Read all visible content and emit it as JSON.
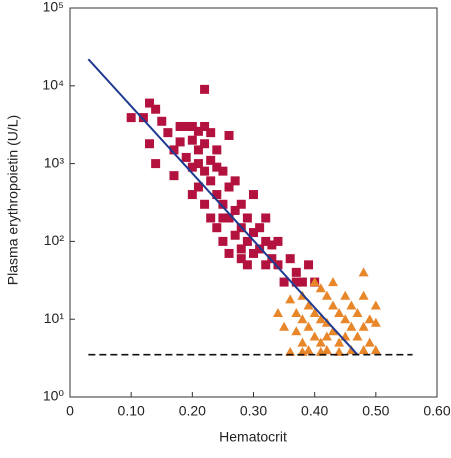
{
  "chart_data": {
    "type": "scatter",
    "x_label": "Hematocrit",
    "y_label": "Plasma erythropoietin (U/L)",
    "xlim": [
      0,
      0.6
    ],
    "ylim": [
      1,
      100000
    ],
    "ylog": true,
    "xticks": [
      0,
      {
        "value": 0.1,
        "label": "0.10"
      },
      {
        "value": 0.2,
        "label": "0.20"
      },
      {
        "value": 0.3,
        "label": "0.30"
      },
      {
        "value": 0.4,
        "label": "0.40"
      },
      {
        "value": 0.5,
        "label": "0.50"
      },
      {
        "value": 0.6,
        "label": "0.60"
      }
    ],
    "yticks": [
      {
        "value": 1,
        "label": "10⁰"
      },
      {
        "value": 10,
        "label": "10¹"
      },
      {
        "value": 100,
        "label": "10²"
      },
      {
        "value": 1000,
        "label": "10³"
      },
      {
        "value": 10000,
        "label": "10⁴"
      },
      {
        "value": 100000,
        "label": "10⁵"
      }
    ],
    "series": [
      {
        "color": "#b3123f",
        "marker": "square",
        "x": [
          0.1,
          0.12,
          0.13,
          0.14,
          0.13,
          0.14,
          0.15,
          0.16,
          0.17,
          0.17,
          0.18,
          0.18,
          0.19,
          0.19,
          0.2,
          0.2,
          0.2,
          0.21,
          0.21,
          0.21,
          0.22,
          0.22,
          0.22,
          0.22,
          0.22,
          0.23,
          0.23,
          0.23,
          0.23,
          0.24,
          0.24,
          0.24,
          0.25,
          0.25,
          0.25,
          0.26,
          0.26,
          0.26,
          0.26,
          0.27,
          0.27,
          0.27,
          0.28,
          0.28,
          0.28,
          0.29,
          0.29,
          0.3,
          0.3,
          0.3,
          0.31,
          0.31,
          0.32,
          0.32,
          0.32,
          0.33,
          0.33,
          0.34,
          0.34,
          0.35,
          0.36,
          0.37,
          0.37,
          0.38,
          0.39,
          0.4,
          0.2,
          0.21,
          0.24,
          0.25,
          0.28,
          0.29
        ],
        "values": [
          3900,
          3900,
          6000,
          5000,
          1800,
          1000,
          3500,
          2500,
          1500,
          700,
          3000,
          1900,
          3000,
          1200,
          3000,
          2000,
          900,
          2600,
          1500,
          500,
          9000,
          3000,
          1800,
          800,
          300,
          2500,
          1100,
          600,
          200,
          1500,
          400,
          150,
          800,
          300,
          100,
          2300,
          500,
          200,
          70,
          600,
          250,
          120,
          300,
          150,
          60,
          200,
          100,
          400,
          130,
          70,
          150,
          80,
          200,
          100,
          50,
          90,
          60,
          100,
          50,
          30,
          60,
          40,
          30,
          30,
          50,
          30,
          400,
          1000,
          900,
          200,
          80,
          50
        ]
      },
      {
        "color": "#e8862a",
        "marker": "triangle",
        "x": [
          0.36,
          0.37,
          0.37,
          0.38,
          0.38,
          0.38,
          0.39,
          0.39,
          0.39,
          0.4,
          0.4,
          0.4,
          0.41,
          0.41,
          0.41,
          0.41,
          0.42,
          0.42,
          0.42,
          0.42,
          0.43,
          0.43,
          0.43,
          0.44,
          0.44,
          0.44,
          0.45,
          0.45,
          0.45,
          0.46,
          0.46,
          0.46,
          0.47,
          0.47,
          0.48,
          0.48,
          0.48,
          0.48,
          0.49,
          0.49,
          0.5,
          0.5,
          0.5,
          0.38,
          0.36,
          0.34,
          0.35
        ],
        "values": [
          18,
          12,
          7,
          20,
          10,
          5,
          15,
          8,
          4,
          30,
          12,
          6,
          25,
          10,
          5,
          3.8,
          20,
          9,
          6,
          4,
          30,
          15,
          7,
          12,
          5,
          3.8,
          20,
          10,
          6,
          15,
          8,
          4,
          12,
          6,
          40,
          20,
          8,
          4,
          10,
          5,
          15,
          9,
          4,
          3.8,
          3.8,
          12,
          8
        ]
      }
    ],
    "lines": [
      {
        "color": "#1f3a8f",
        "style": "solid",
        "x": [
          0.03,
          0.47
        ],
        "values": [
          22000,
          3.5
        ]
      },
      {
        "color": "#111111",
        "style": "dashed",
        "x": [
          0.03,
          0.56
        ],
        "values": [
          3.5,
          3.5
        ]
      }
    ]
  }
}
